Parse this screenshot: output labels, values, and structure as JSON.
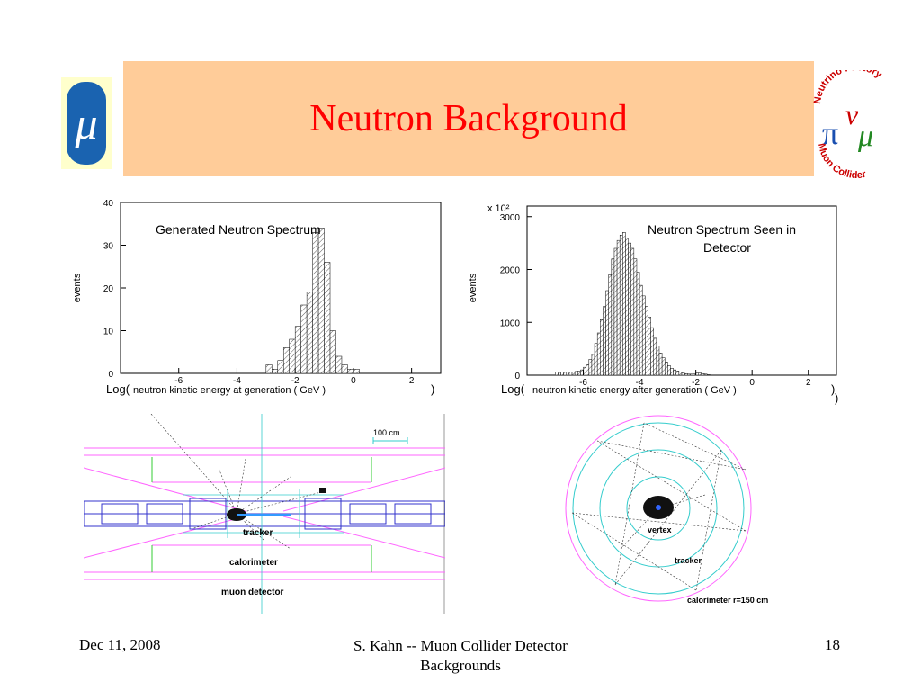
{
  "slide": {
    "title": "Neutron Background",
    "logo_left_symbol": "μ",
    "logo_right": {
      "top_text": "Neutrino Factory",
      "bottom_text": "Muon Collider",
      "glyphs": [
        "π",
        "ν",
        "μ"
      ]
    },
    "footer": {
      "date": "Dec 11, 2008",
      "center_line1": "S. Kahn -- Muon Collider Detector",
      "center_line2": "Backgrounds",
      "page": "18"
    }
  },
  "chart_data": [
    {
      "type": "bar",
      "title": "Generated Neutron Spectrum",
      "ylabel": "events",
      "xlabel": "neutron kinetic energy at generation ( GeV )",
      "xlabel_prefix": "Log(",
      "xlabel_suffix": ")",
      "xlim": [
        -8,
        3
      ],
      "ylim": [
        0,
        40
      ],
      "x_ticks": [
        -6,
        -4,
        -2,
        0,
        2
      ],
      "y_ticks": [
        0,
        10,
        20,
        30,
        40
      ],
      "bin_width": 0.2,
      "x": [
        -3.0,
        -2.8,
        -2.6,
        -2.4,
        -2.2,
        -2.0,
        -1.8,
        -1.6,
        -1.4,
        -1.2,
        -1.0,
        -0.8,
        -0.6,
        -0.4,
        -0.2,
        0.0
      ],
      "values": [
        2,
        1,
        3,
        6,
        8,
        11,
        16,
        19,
        33,
        34,
        26,
        10,
        4,
        2,
        1,
        1
      ]
    },
    {
      "type": "bar",
      "title": "Neutron Spectrum Seen in Detector",
      "ylabel": "events",
      "y_multiplier": "x 10²",
      "xlabel": "neutron kinetic energy after generation ( GeV )",
      "xlabel_prefix": "Log(",
      "xlabel_suffix": ")",
      "xlim": [
        -8,
        3
      ],
      "ylim": [
        0,
        3200
      ],
      "x_ticks": [
        -6,
        -4,
        -2,
        0,
        2
      ],
      "y_ticks": [
        0,
        1000,
        2000,
        3000
      ],
      "bin_width": 0.1,
      "x": [
        -7.0,
        -6.9,
        -6.8,
        -6.7,
        -6.6,
        -6.5,
        -6.4,
        -6.3,
        -6.2,
        -6.1,
        -6.0,
        -5.9,
        -5.8,
        -5.7,
        -5.6,
        -5.5,
        -5.4,
        -5.3,
        -5.2,
        -5.1,
        -5.0,
        -4.9,
        -4.8,
        -4.7,
        -4.6,
        -4.5,
        -4.4,
        -4.3,
        -4.2,
        -4.1,
        -4.0,
        -3.9,
        -3.8,
        -3.7,
        -3.6,
        -3.5,
        -3.4,
        -3.3,
        -3.2,
        -3.1,
        -3.0,
        -2.9,
        -2.8,
        -2.7,
        -2.6,
        -2.5,
        -2.4,
        -2.3,
        -2.2,
        -2.1,
        -2.0,
        -1.9,
        -1.8,
        -1.7,
        -1.6
      ],
      "values": [
        60,
        60,
        60,
        60,
        60,
        60,
        60,
        70,
        80,
        100,
        150,
        200,
        300,
        400,
        600,
        800,
        1050,
        1300,
        1600,
        1900,
        2200,
        2400,
        2550,
        2650,
        2700,
        2600,
        2500,
        2400,
        2200,
        1950,
        1700,
        1500,
        1300,
        1100,
        900,
        700,
        550,
        420,
        330,
        250,
        180,
        130,
        100,
        80,
        60,
        40,
        30,
        20,
        20,
        30,
        40,
        40,
        30,
        20,
        10
      ]
    }
  ],
  "tracker_side_view": {
    "scale_label": "100 cm",
    "labels": [
      "tracker",
      "calorimeter",
      "muon detector"
    ]
  },
  "tracker_end_view": {
    "labels": [
      "vertex",
      "tracker",
      "calorimeter r=150 cm"
    ]
  },
  "colors": {
    "title_bar": "#ffcc99",
    "title_text": "#ff0000",
    "detector_magenta": "#ff66ff",
    "detector_blue": "#3333cc",
    "detector_green": "#33cc33",
    "detector_cyan": "#33cccc"
  }
}
